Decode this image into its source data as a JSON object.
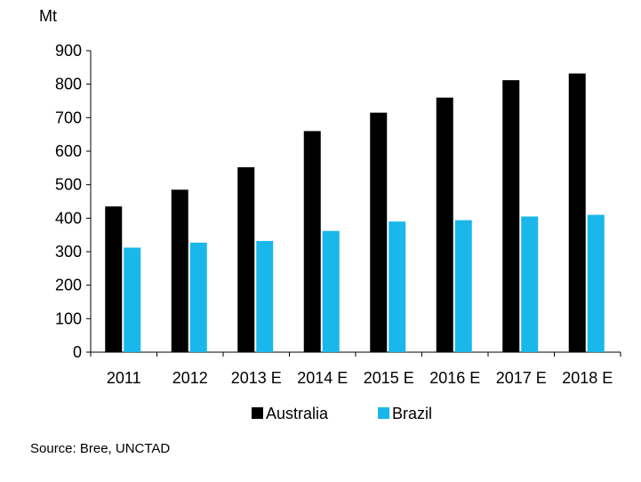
{
  "chart_data": {
    "type": "bar",
    "unit_label": "Mt",
    "categories": [
      "2011",
      "2012",
      "2013 E",
      "2014 E",
      "2015 E",
      "2016 E",
      "2017 E",
      "2018 E"
    ],
    "series": [
      {
        "name": "Australia",
        "color": "#000000",
        "values": [
          435,
          485,
          552,
          660,
          715,
          760,
          812,
          832
        ]
      },
      {
        "name": "Brazil",
        "color": "#1ab7ea",
        "values": [
          312,
          327,
          332,
          362,
          390,
          394,
          405,
          410
        ]
      }
    ],
    "ylim": [
      0,
      900
    ],
    "yticks": [
      0,
      100,
      200,
      300,
      400,
      500,
      600,
      700,
      800,
      900
    ],
    "grid": false,
    "legend_position": "bottom"
  },
  "source": "Source: Bree, UNCTAD"
}
